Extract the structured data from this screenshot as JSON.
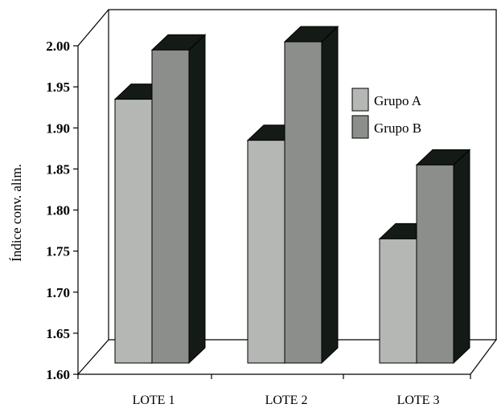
{
  "chart_data": {
    "type": "bar",
    "style": "3d-clustered",
    "ylabel": "Índice conv. alim.",
    "xlabel": "",
    "title": "",
    "ylim": [
      1.6,
      2.0
    ],
    "yticks": [
      "1.60",
      "1.65",
      "1.70",
      "1.75",
      "1.80",
      "1.85",
      "1.90",
      "1.95",
      "2.00"
    ],
    "categories": [
      "LOTE 1",
      "LOTE 2",
      "LOTE 3"
    ],
    "series": [
      {
        "name": "Grupo A",
        "values": [
          1.93,
          1.88,
          1.76
        ],
        "color": "#b4b7b4"
      },
      {
        "name": "Grupo B",
        "values": [
          1.99,
          2.0,
          1.85
        ],
        "color": "#8b8e8b"
      }
    ],
    "depth_color": "#141a15",
    "grid": false,
    "legend_position": "right"
  }
}
